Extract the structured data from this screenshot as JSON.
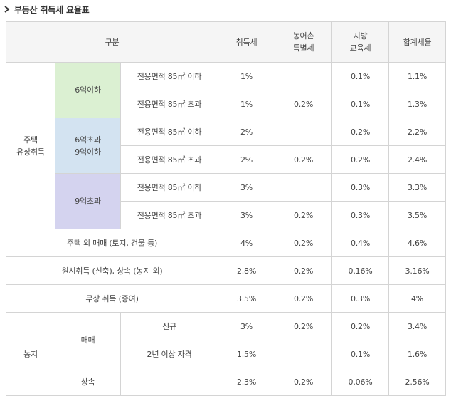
{
  "title": "부동산 취득세 요율표",
  "header": {
    "category": "구분",
    "acq_tax": "취득세",
    "rural_line1": "농어촌",
    "rural_line2": "특별세",
    "edu_line1": "지방",
    "edu_line2": "교육세",
    "total": "합계세율"
  },
  "housing": {
    "group_line1": "주택",
    "group_line2": "유상취득",
    "tier1": {
      "label": "6억이하"
    },
    "tier2": {
      "label_line1": "6억초과",
      "label_line2": "9억이하"
    },
    "tier3": {
      "label": "9억초과"
    },
    "area_below": "전용면적 85㎡ 이하",
    "area_above": "전용면적 85㎡ 초과",
    "rows": [
      {
        "acq": "1%",
        "rural": "",
        "edu": "0.1%",
        "total": "1.1%"
      },
      {
        "acq": "1%",
        "rural": "0.2%",
        "edu": "0.1%",
        "total": "1.3%"
      },
      {
        "acq": "2%",
        "rural": "",
        "edu": "0.2%",
        "total": "2.2%"
      },
      {
        "acq": "2%",
        "rural": "0.2%",
        "edu": "0.2%",
        "total": "2.4%"
      },
      {
        "acq": "3%",
        "rural": "",
        "edu": "0.3%",
        "total": "3.3%"
      },
      {
        "acq": "3%",
        "rural": "0.2%",
        "edu": "0.3%",
        "total": "3.5%"
      }
    ]
  },
  "others": [
    {
      "label": "주택 외 매매 (토지, 건물 등)",
      "acq": "4%",
      "rural": "0.2%",
      "edu": "0.4%",
      "total": "4.6%"
    },
    {
      "label": "원시취득 (신축), 상속 (농지 외)",
      "acq": "2.8%",
      "rural": "0.2%",
      "edu": "0.16%",
      "total": "3.16%"
    },
    {
      "label": "무상 취득 (증여)",
      "acq": "3.5%",
      "rural": "0.2%",
      "edu": "0.3%",
      "total": "4%"
    }
  ],
  "farmland": {
    "group": "농지",
    "sale": "매매",
    "new": "신규",
    "two_years": "2년 이상 자격",
    "inherit": "상속",
    "rows": [
      {
        "acq": "3%",
        "rural": "0.2%",
        "edu": "0.2%",
        "total": "3.4%"
      },
      {
        "acq": "1.5%",
        "rural": "",
        "edu": "0.1%",
        "total": "1.6%"
      },
      {
        "acq": "2.3%",
        "rural": "0.2%",
        "edu": "0.06%",
        "total": "2.56%"
      }
    ]
  }
}
